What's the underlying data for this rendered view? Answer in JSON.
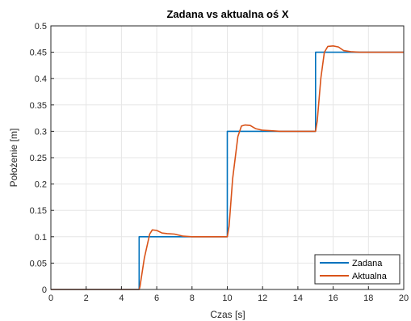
{
  "chart_data": {
    "type": "line",
    "title": "Zadana vs aktualna oś X",
    "xlabel": "Czas [s]",
    "ylabel": "Położenie [m]",
    "xlim": [
      0,
      20
    ],
    "ylim": [
      0,
      0.5
    ],
    "x_ticks": [
      "0",
      "2",
      "4",
      "6",
      "8",
      "10",
      "12",
      "14",
      "16",
      "18",
      "20"
    ],
    "y_ticks": [
      "0",
      "0.05",
      "0.1",
      "0.15",
      "0.2",
      "0.25",
      "0.3",
      "0.35",
      "0.4",
      "0.45",
      "0.5"
    ],
    "grid": true,
    "legend_position": "bottom-right",
    "series": [
      {
        "name": "Zadana",
        "color": "#0072BD",
        "x": [
          0,
          5,
          5,
          10,
          10,
          15,
          15,
          20
        ],
        "y": [
          0,
          0,
          0.1,
          0.1,
          0.3,
          0.3,
          0.45,
          0.45
        ]
      },
      {
        "name": "Aktualna",
        "color": "#D95319",
        "x": [
          0,
          5.0,
          5.05,
          5.3,
          5.6,
          5.75,
          6.0,
          6.3,
          6.6,
          7.0,
          7.5,
          8.0,
          10.0,
          10.1,
          10.3,
          10.6,
          10.8,
          11.0,
          11.3,
          11.6,
          12.0,
          12.5,
          13.0,
          15.0,
          15.1,
          15.3,
          15.5,
          15.7,
          16.0,
          16.3,
          16.6,
          17.0,
          17.5,
          18.0,
          20.0
        ],
        "y": [
          0,
          0,
          0.005,
          0.06,
          0.105,
          0.113,
          0.112,
          0.107,
          0.106,
          0.105,
          0.101,
          0.1,
          0.1,
          0.12,
          0.21,
          0.29,
          0.31,
          0.312,
          0.311,
          0.305,
          0.302,
          0.301,
          0.3,
          0.3,
          0.32,
          0.4,
          0.45,
          0.461,
          0.462,
          0.46,
          0.453,
          0.451,
          0.45,
          0.45,
          0.45
        ]
      }
    ]
  }
}
